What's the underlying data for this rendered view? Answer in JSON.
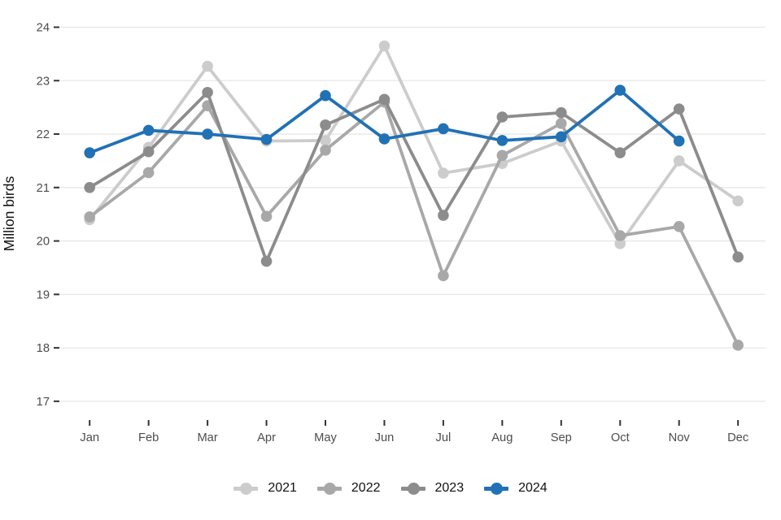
{
  "chart_data": {
    "type": "line",
    "title": "",
    "xlabel": "",
    "ylabel": "Million birds",
    "ylim": [
      17,
      24
    ],
    "y_ticks": [
      24,
      23,
      22,
      21,
      20,
      19,
      18,
      17
    ],
    "grid": "horizontal",
    "legend_position": "bottom",
    "categories": [
      "Jan",
      "Feb",
      "Mar",
      "Apr",
      "May",
      "Jun",
      "Jul",
      "Aug",
      "Sep",
      "Oct",
      "Nov",
      "Dec"
    ],
    "series": [
      {
        "name": "2021",
        "color": "#cccccc",
        "values": [
          20.4,
          21.75,
          23.27,
          21.87,
          21.88,
          23.65,
          21.27,
          21.45,
          21.87,
          19.95,
          21.5,
          20.75
        ]
      },
      {
        "name": "2022",
        "color": "#a8a8a8",
        "values": [
          20.45,
          21.28,
          22.53,
          20.46,
          21.7,
          22.6,
          19.35,
          21.6,
          22.2,
          20.1,
          20.27,
          18.05
        ]
      },
      {
        "name": "2023",
        "color": "#8c8c8c",
        "values": [
          21.0,
          21.67,
          22.78,
          19.62,
          22.17,
          22.65,
          20.48,
          22.32,
          22.4,
          21.65,
          22.47,
          19.7
        ]
      },
      {
        "name": "2024",
        "color": "#2171b5",
        "values": [
          21.65,
          22.07,
          22.0,
          21.9,
          22.72,
          21.91,
          22.1,
          21.88,
          21.95,
          22.82,
          21.87,
          null
        ]
      }
    ],
    "colors": {
      "grid": "#e7e7e7",
      "tick": "#333333",
      "tick_label": "#4d4d4d",
      "axis_label": "#111111"
    }
  }
}
